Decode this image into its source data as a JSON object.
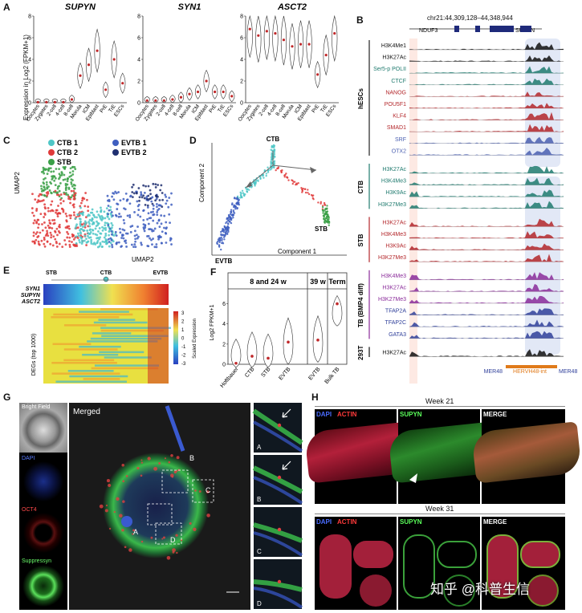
{
  "panels": {
    "A": "A",
    "B": "B",
    "C": "C",
    "D": "D",
    "E": "E",
    "F": "F",
    "G": "G",
    "H": "H"
  },
  "panelA": {
    "ylabel": "Expression in Log2 (FPKM+1)",
    "titles": [
      "SUPYN",
      "SYN1",
      "ASCT2"
    ],
    "ymax": 8,
    "yticks": [
      "0",
      "2",
      "4",
      "6",
      "8"
    ],
    "stages": [
      "Oocytes",
      "Zygotes",
      "2-cell",
      "4-cell",
      "8-cell",
      "Morula",
      "ICM",
      "Epiblast",
      "PrE",
      "TrE",
      "ESCs"
    ],
    "medians": [
      [
        0.05,
        0.05,
        0.05,
        0.05,
        0.3,
        2.5,
        3.5,
        4.8,
        1.2,
        4.0,
        1.8
      ],
      [
        0.2,
        0.2,
        0.2,
        0.3,
        0.5,
        0.8,
        1.0,
        2.0,
        1.0,
        1.0,
        0.6
      ],
      [
        6.8,
        6.2,
        6.6,
        6.4,
        5.8,
        5.2,
        5.4,
        5.4,
        2.6,
        4.4,
        6.4
      ]
    ]
  },
  "panelB": {
    "coords": "chr21:44,309,128–44,348,944",
    "gene_left": "NDUF3",
    "gene_right": "SUPYN",
    "groups": [
      "hESCs",
      "CTB",
      "STB",
      "TB (BMP4 diff)",
      "293T"
    ],
    "tracks_hesc": [
      {
        "name": "H3K4Me1",
        "color": "#111111"
      },
      {
        "name": "H3K27Ac",
        "color": "#111111"
      },
      {
        "name": "Ser5-p POLII",
        "color": "#1f7a6e"
      },
      {
        "name": "CTCF",
        "color": "#1f7a6e"
      },
      {
        "name": "NANOG",
        "color": "#b3262a"
      },
      {
        "name": "POU5F1",
        "color": "#b3262a"
      },
      {
        "name": "KLF4",
        "color": "#b3262a"
      },
      {
        "name": "SMAD1",
        "color": "#b3262a"
      },
      {
        "name": "SRF",
        "color": "#4a5fb0"
      },
      {
        "name": "OTX2",
        "color": "#4a5fb0"
      }
    ],
    "tracks_ctb": [
      {
        "name": "H3K27Ac",
        "color": "#1f7a6e"
      },
      {
        "name": "H3K4Me3",
        "color": "#1f7a6e"
      },
      {
        "name": "H3K9Ac",
        "color": "#1f7a6e"
      },
      {
        "name": "H3K27Me3",
        "color": "#1f7a6e"
      }
    ],
    "tracks_stb": [
      {
        "name": "H3K27Ac",
        "color": "#b3262a"
      },
      {
        "name": "H3K4Me3",
        "color": "#b3262a"
      },
      {
        "name": "H3K9Ac",
        "color": "#b3262a"
      },
      {
        "name": "H3K27Me3",
        "color": "#b3262a"
      }
    ],
    "tracks_tb": [
      {
        "name": "H3K4Me3",
        "color": "#8a2b9a"
      },
      {
        "name": "H3K27Ac",
        "color": "#8a2b9a"
      },
      {
        "name": "H3K27Me3",
        "color": "#8a2b9a"
      },
      {
        "name": "TFAP2A",
        "color": "#2f3f9a"
      },
      {
        "name": "TFAP2C",
        "color": "#2f3f9a"
      },
      {
        "name": "GATA3",
        "color": "#2f3f9a"
      }
    ],
    "tracks_293t": [
      {
        "name": "H3K27Ac",
        "color": "#111111"
      }
    ],
    "bottom_labels": [
      "MER48",
      "HERVH48-int",
      "MER48"
    ]
  },
  "panelC": {
    "legend": [
      {
        "name": "CTB 1",
        "color": "#4fc7c7"
      },
      {
        "name": "CTB 2",
        "color": "#e03a3a"
      },
      {
        "name": "STB",
        "color": "#3aa047"
      },
      {
        "name": "EVTB 1",
        "color": "#3f5fc0"
      },
      {
        "name": "EVTB 2",
        "color": "#1f2f70"
      }
    ],
    "xlabel": "UMAP2",
    "ylabel": "UMAP2"
  },
  "panelD": {
    "ylabel": "Component 2",
    "xlabel": "Component 1",
    "labels": [
      "CTB",
      "STB",
      "EVTB"
    ]
  },
  "panelE": {
    "top_labels": [
      "STB",
      "CTB",
      "EVTB"
    ],
    "genes": [
      "SYN1",
      "SUPYN",
      "ASCT2"
    ],
    "side_label": "DEGs (top 1000)",
    "scale_title": "Scaled Expression",
    "scale_ticks": [
      "3",
      "2",
      "1",
      "0",
      "-1",
      "-2",
      "-3"
    ]
  },
  "panelF": {
    "headers": [
      "8 and 24 w",
      "39 w",
      "Term"
    ],
    "ylabel": "Log2 FPKM+1",
    "yticks": [
      "0",
      "2",
      "4",
      "6"
    ],
    "categories": [
      "Hoftbauer",
      "CTB",
      "STB",
      "EVTB",
      "EVTB",
      "Bulk TB"
    ],
    "medians": [
      0.1,
      0.8,
      0.6,
      2.2,
      2.4,
      6.0
    ]
  },
  "panelG": {
    "side_labels": [
      "Bright Field",
      "DAPI",
      "OCT4",
      "Suppressyn"
    ],
    "merged_title": "Merged",
    "box_labels": [
      "A",
      "B",
      "C",
      "D"
    ],
    "inset_labels": [
      "A",
      "B",
      "C",
      "D"
    ]
  },
  "panelH": {
    "week1": "Week 21",
    "week2": "Week 31",
    "dapi": "DAPI",
    "actin": "ACTIN",
    "supyn": "SUPYN",
    "merge": "MERGE"
  },
  "watermark": "知乎 @科普生信"
}
